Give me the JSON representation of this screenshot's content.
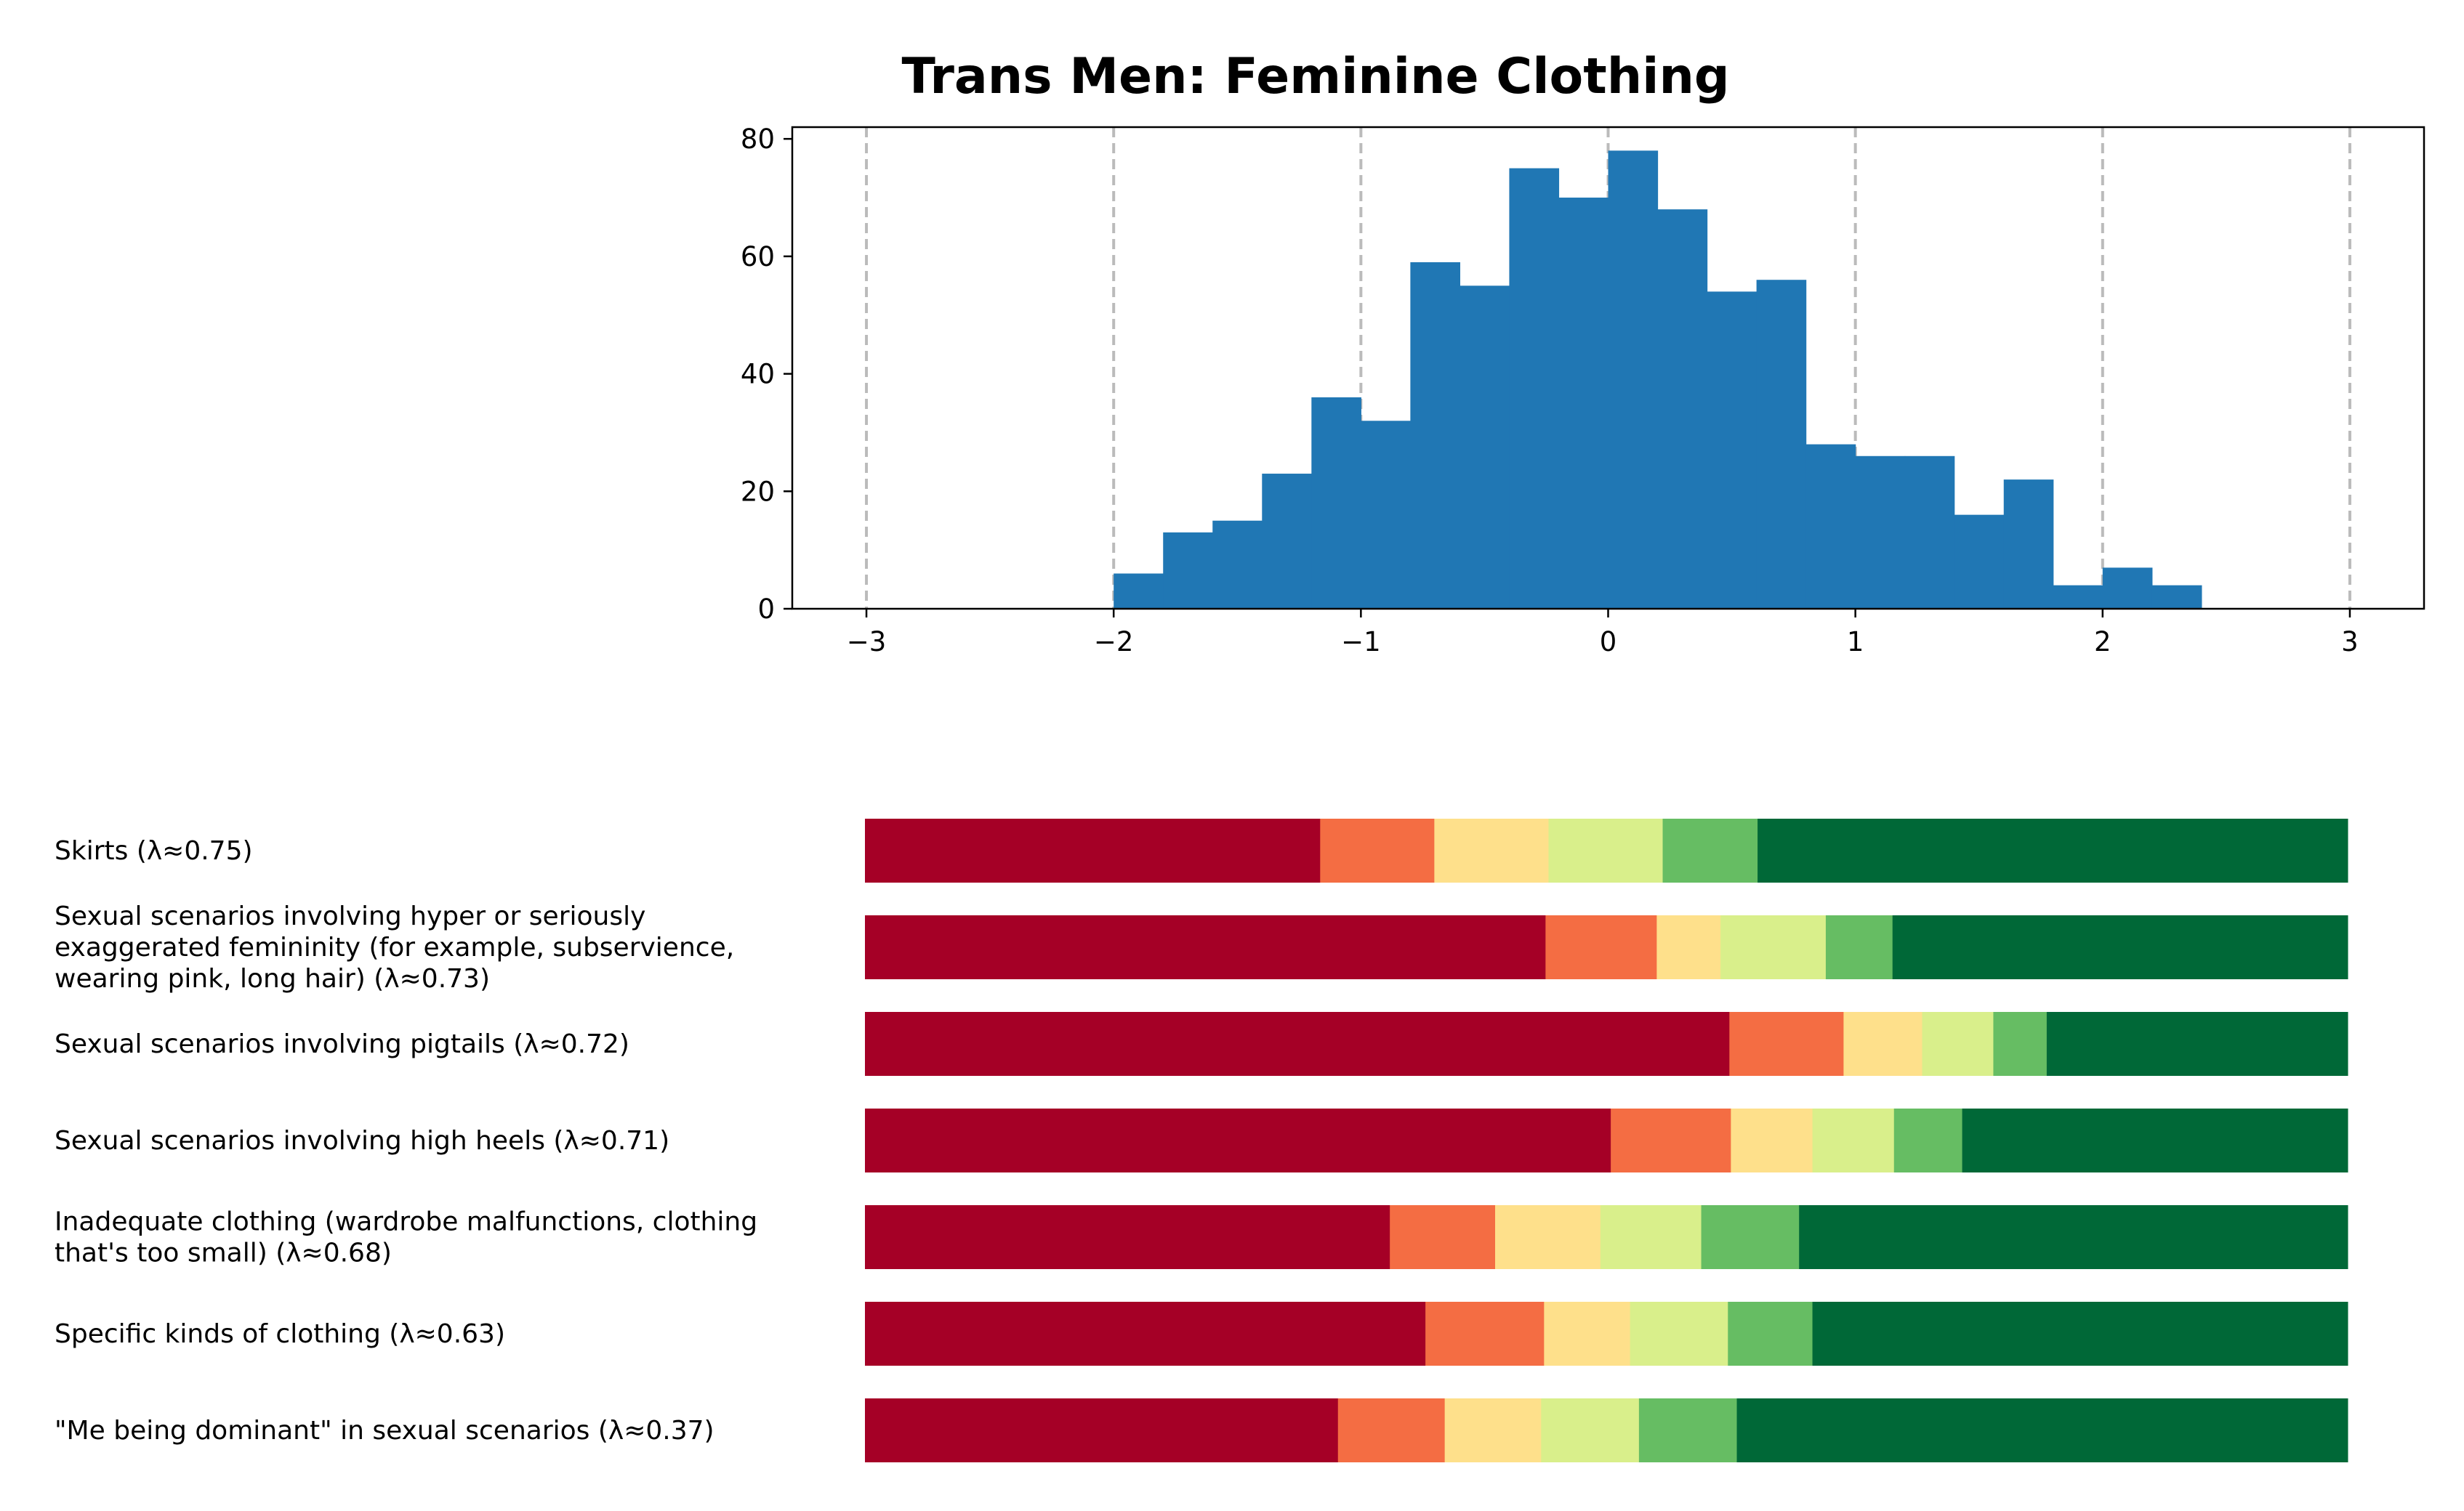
{
  "colors": {
    "histogram": "#2077b4",
    "gridline": "#bbbbbb",
    "likert": [
      "#a50026",
      "#f46d43",
      "#fee08b",
      "#d9ef8b",
      "#66bd63",
      "#006837"
    ]
  },
  "chart_data": [
    {
      "type": "bar",
      "subtype": "histogram",
      "title": "Trans Men: Feminine Clothing",
      "xlabel": "",
      "ylabel": "",
      "xlim": [
        -3.3,
        3.3
      ],
      "ylim": [
        0,
        82
      ],
      "x_ticks": [
        -3,
        -2,
        -1,
        0,
        1,
        2,
        3
      ],
      "x_tick_labels": [
        "−3",
        "−2",
        "−1",
        "0",
        "1",
        "2",
        "3"
      ],
      "y_ticks": [
        0,
        20,
        40,
        60,
        80
      ],
      "y_tick_labels": [
        "0",
        "20",
        "40",
        "60",
        "80"
      ],
      "grid": "vertical dashed at x ticks",
      "bin_start": -2.0,
      "bin_width": 0.2,
      "values": [
        6,
        13,
        15,
        23,
        36,
        32,
        59,
        55,
        75,
        70,
        78,
        68,
        54,
        56,
        28,
        26,
        26,
        16,
        22,
        4,
        7,
        4
      ]
    },
    {
      "type": "bar",
      "subtype": "stacked-horizontal-100",
      "categories": [
        "Skirts (λ≈0.75)",
        "Sexual scenarios involving hyper or seriously exaggerated femininity (for example, subservience, wearing pink, long hair) (λ≈0.73)",
        "Sexual scenarios involving pigtails (λ≈0.72)",
        "Sexual scenarios involving high heels (λ≈0.71)",
        "Inadequate clothing (wardrobe malfunctions, clothing that's too small) (λ≈0.68)",
        "Specific kinds of clothing (λ≈0.63)",
        "\"Me being dominant\" in sexual scenarios (λ≈0.37)"
      ],
      "label_lines": [
        [
          "Skirts (λ≈0.75)"
        ],
        [
          "Sexual scenarios involving hyper or seriously",
          "exaggerated femininity (for example, subservience,",
          "wearing pink, long hair) (λ≈0.73)"
        ],
        [
          "Sexual scenarios involving pigtails (λ≈0.72)"
        ],
        [
          "Sexual scenarios involving high heels (λ≈0.71)"
        ],
        [
          "Inadequate clothing (wardrobe malfunctions, clothing",
          "that's too small) (λ≈0.68)"
        ],
        [
          "Specific kinds of clothing (λ≈0.63)"
        ],
        [
          "\"Me being dominant\" in sexual scenarios (λ≈0.37)"
        ]
      ],
      "segments": [
        [
          30.7,
          7.7,
          7.7,
          7.7,
          6.4,
          39.8
        ],
        [
          45.9,
          7.5,
          4.3,
          7.1,
          4.5,
          30.7
        ],
        [
          58.3,
          7.7,
          5.3,
          4.8,
          3.6,
          20.3
        ],
        [
          50.3,
          8.1,
          5.5,
          5.5,
          4.6,
          26.0
        ],
        [
          35.4,
          7.1,
          7.1,
          6.8,
          6.6,
          37.0
        ],
        [
          37.8,
          8.0,
          5.8,
          6.6,
          5.7,
          36.1
        ],
        [
          31.9,
          7.2,
          6.5,
          6.6,
          6.6,
          41.2
        ]
      ]
    }
  ]
}
